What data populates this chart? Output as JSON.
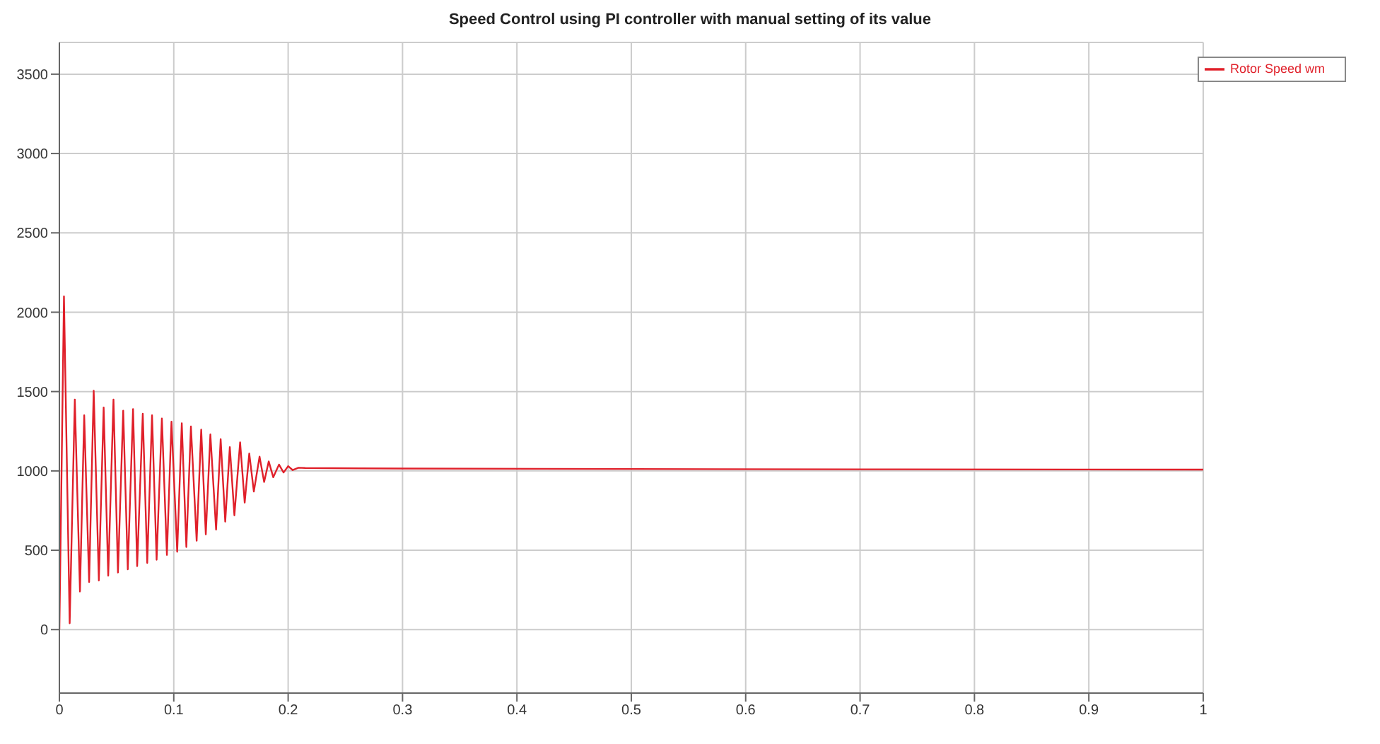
{
  "chart_data": {
    "type": "line",
    "title": "Speed Control using PI controller with manual setting of its value",
    "x": [
      0,
      0.004,
      0.009,
      0.0135,
      0.018,
      0.0217,
      0.026,
      0.03,
      0.0345,
      0.0387,
      0.0427,
      0.0473,
      0.0512,
      0.0558,
      0.0598,
      0.0644,
      0.068,
      0.0729,
      0.0768,
      0.081,
      0.085,
      0.0896,
      0.094,
      0.098,
      0.103,
      0.107,
      0.111,
      0.115,
      0.12,
      0.124,
      0.128,
      0.132,
      0.137,
      0.141,
      0.145,
      0.149,
      0.153,
      0.158,
      0.162,
      0.166,
      0.17,
      0.175,
      0.179,
      0.183,
      0.187,
      0.192,
      0.196,
      0.2,
      0.204,
      0.209,
      0.215,
      0.3,
      0.5,
      0.7,
      1.0
    ],
    "series": [
      {
        "name": "Rotor Speed wm",
        "color": "#e0202a",
        "values": [
          0,
          2100,
          40,
          1450,
          240,
          1350,
          300,
          1505,
          310,
          1400,
          340,
          1450,
          360,
          1380,
          380,
          1390,
          400,
          1360,
          420,
          1350,
          440,
          1330,
          470,
          1310,
          490,
          1300,
          520,
          1280,
          560,
          1260,
          600,
          1230,
          630,
          1200,
          680,
          1150,
          720,
          1180,
          800,
          1110,
          870,
          1090,
          930,
          1060,
          960,
          1040,
          990,
          1030,
          1005,
          1020,
          1018,
          1015,
          1012,
          1010,
          1008
        ]
      }
    ],
    "xlim": [
      0,
      1
    ],
    "xticks": [
      0,
      0.1,
      0.2,
      0.3,
      0.4,
      0.5,
      0.6,
      0.7,
      0.8,
      0.9,
      1
    ],
    "ylim": [
      -400,
      3700
    ],
    "yticks": [
      0,
      500,
      1000,
      1500,
      2000,
      2500,
      3000,
      3500
    ],
    "grid": true,
    "legend": "top right",
    "marker": "none",
    "line_style": "solid"
  }
}
